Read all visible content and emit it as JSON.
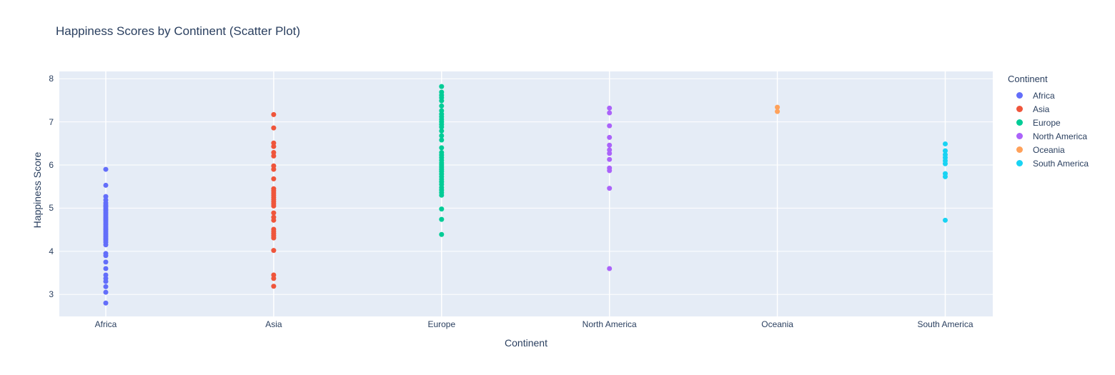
{
  "chart_data": {
    "type": "scatter",
    "title": "Happiness Scores by Continent (Scatter Plot)",
    "xlabel": "Continent",
    "ylabel": "Happiness Score",
    "categories": [
      "Africa",
      "Asia",
      "Europe",
      "North America",
      "Oceania",
      "South America"
    ],
    "yticks": [
      3,
      4,
      5,
      6,
      7,
      8
    ],
    "ylim": [
      2.49,
      8.17
    ],
    "grid": true,
    "legend_title": "Continent",
    "legend_position": "right",
    "plot_bgcolor": "#e5ecf6",
    "gridcolor": "#ffffff",
    "font_color": "#2a3f5f",
    "marker_px": 7,
    "series": [
      {
        "name": "Africa",
        "color": "#636efa",
        "values": [
          5.9,
          5.53,
          5.27,
          5.19,
          5.12,
          5.07,
          5.03,
          4.98,
          4.94,
          4.9,
          4.86,
          4.82,
          4.78,
          4.74,
          4.7,
          4.66,
          4.62,
          4.58,
          4.54,
          4.5,
          4.46,
          4.42,
          4.38,
          4.34,
          4.3,
          4.26,
          4.21,
          4.15,
          3.95,
          3.9,
          3.75,
          3.6,
          3.45,
          3.37,
          3.3,
          3.18,
          3.05,
          2.8
        ]
      },
      {
        "name": "Asia",
        "color": "#ef553b",
        "values": [
          7.17,
          6.86,
          6.51,
          6.43,
          6.29,
          6.21,
          5.98,
          5.9,
          5.68,
          5.45,
          5.4,
          5.35,
          5.3,
          5.25,
          5.2,
          5.15,
          5.1,
          5.05,
          4.89,
          4.79,
          4.72,
          4.51,
          4.46,
          4.41,
          4.36,
          4.31,
          4.02,
          3.45,
          3.37,
          3.19
        ]
      },
      {
        "name": "Europe",
        "color": "#00cc96",
        "values": [
          7.82,
          7.69,
          7.62,
          7.56,
          7.49,
          7.37,
          7.26,
          7.18,
          7.12,
          7.06,
          7.0,
          6.94,
          6.88,
          6.79,
          6.68,
          6.58,
          6.4,
          6.29,
          6.23,
          6.17,
          6.11,
          6.05,
          6.0,
          5.95,
          5.9,
          5.85,
          5.79,
          5.73,
          5.67,
          5.61,
          5.55,
          5.48,
          5.42,
          5.36,
          5.3,
          4.98,
          4.74,
          4.39
        ]
      },
      {
        "name": "North America",
        "color": "#ab63fa",
        "values": [
          7.32,
          7.21,
          6.91,
          6.64,
          6.46,
          6.35,
          6.27,
          6.13,
          5.93,
          5.87,
          5.46,
          3.6
        ]
      },
      {
        "name": "Oceania",
        "color": "#ffa15a",
        "values": [
          7.34,
          7.24
        ]
      },
      {
        "name": "South America",
        "color": "#19d3f3",
        "values": [
          6.49,
          6.33,
          6.24,
          6.17,
          6.1,
          6.03,
          5.8,
          5.73,
          4.72
        ]
      }
    ]
  }
}
